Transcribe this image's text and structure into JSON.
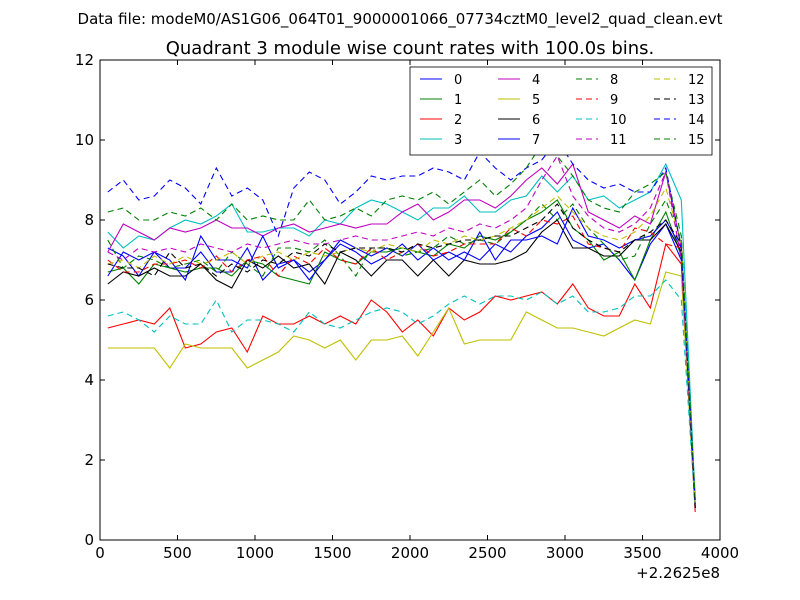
{
  "chart_data": {
    "type": "line",
    "suptitle": "Data file: modeM0/AS1G06_064T01_9000001066_07734cztM0_level2_quad_clean.evt",
    "title": "Quadrant 3 module wise count rates with 100.0s bins.",
    "xlabel": "",
    "ylabel": "",
    "x_offset_label": "+2.2625e8",
    "xlim": [
      0,
      4000
    ],
    "ylim": [
      0,
      12
    ],
    "xticks": [
      0,
      500,
      1000,
      1500,
      2000,
      2500,
      3000,
      3500,
      4000
    ],
    "yticks": [
      0,
      2,
      4,
      6,
      8,
      10,
      12
    ],
    "x": [
      50,
      150,
      250,
      350,
      450,
      550,
      650,
      750,
      850,
      950,
      1050,
      1150,
      1250,
      1350,
      1450,
      1550,
      1650,
      1750,
      1850,
      1950,
      2050,
      2150,
      2250,
      2350,
      2450,
      2550,
      2650,
      2750,
      2850,
      2950,
      3050,
      3150,
      3250,
      3350,
      3450,
      3550,
      3650,
      3750,
      3840
    ],
    "legend": {
      "location": "upper right",
      "columns": 4
    },
    "series": [
      {
        "name": "0",
        "color": "#0000ff",
        "dash": "solid",
        "values": [
          7.3,
          7.1,
          6.6,
          7.2,
          6.8,
          6.8,
          7.2,
          6.7,
          6.7,
          7.3,
          6.5,
          6.9,
          7.0,
          6.7,
          7.0,
          7.4,
          7.2,
          6.9,
          7.1,
          7.4,
          7.0,
          7.3,
          7.0,
          7.2,
          7.0,
          7.4,
          7.2,
          7.6,
          7.8,
          8.2,
          7.5,
          7.3,
          7.4,
          7.0,
          6.5,
          7.4,
          7.9,
          7.0,
          0.8
        ]
      },
      {
        "name": "1",
        "color": "#008000",
        "dash": "solid",
        "values": [
          6.7,
          6.8,
          6.4,
          6.9,
          6.8,
          6.7,
          6.8,
          6.8,
          6.6,
          7.0,
          6.9,
          6.6,
          6.5,
          6.4,
          7.2,
          7.0,
          6.9,
          7.2,
          7.2,
          7.3,
          7.2,
          7.1,
          7.4,
          7.3,
          7.6,
          7.5,
          7.7,
          8.0,
          8.2,
          8.5,
          7.8,
          7.5,
          7.0,
          7.2,
          6.5,
          7.5,
          8.2,
          7.1,
          0.8
        ]
      },
      {
        "name": "2",
        "color": "#ff0000",
        "dash": "solid",
        "values": [
          5.3,
          5.4,
          5.5,
          5.4,
          5.8,
          4.8,
          4.9,
          5.2,
          5.3,
          4.7,
          5.6,
          5.4,
          5.4,
          5.6,
          5.4,
          5.6,
          5.4,
          6.0,
          5.7,
          5.2,
          5.5,
          5.1,
          5.8,
          5.5,
          5.7,
          6.1,
          6.0,
          6.1,
          6.2,
          5.9,
          6.4,
          5.8,
          5.6,
          5.6,
          6.4,
          5.8,
          7.4,
          6.9,
          0.7
        ]
      },
      {
        "name": "3",
        "color": "#00bfbf",
        "dash": "solid",
        "values": [
          7.7,
          7.3,
          7.6,
          7.5,
          7.8,
          8.0,
          7.9,
          8.1,
          8.4,
          7.7,
          7.7,
          7.8,
          7.8,
          7.6,
          8.0,
          7.9,
          8.3,
          8.5,
          8.4,
          8.2,
          8.0,
          8.3,
          8.3,
          8.6,
          8.2,
          8.2,
          8.5,
          8.6,
          9.1,
          8.7,
          9.1,
          8.5,
          8.6,
          8.3,
          8.5,
          8.7,
          9.4,
          8.5,
          1.0
        ]
      },
      {
        "name": "4",
        "color": "#bf00bf",
        "dash": "solid",
        "values": [
          7.2,
          7.9,
          7.7,
          7.5,
          7.8,
          7.7,
          7.8,
          8.0,
          7.8,
          7.8,
          7.6,
          7.8,
          7.9,
          7.7,
          7.8,
          7.9,
          7.8,
          7.9,
          7.9,
          8.2,
          8.4,
          8.0,
          8.2,
          8.5,
          8.5,
          8.3,
          8.6,
          9.0,
          9.3,
          8.9,
          9.4,
          8.2,
          8.0,
          7.8,
          8.1,
          7.9,
          9.2,
          7.3,
          0.9
        ]
      },
      {
        "name": "5",
        "color": "#bfbf00",
        "dash": "solid",
        "values": [
          4.8,
          4.8,
          4.8,
          4.8,
          4.3,
          4.9,
          4.8,
          4.8,
          4.8,
          4.3,
          4.5,
          4.7,
          5.1,
          5.0,
          4.8,
          5.0,
          4.5,
          5.0,
          5.0,
          5.1,
          4.6,
          5.2,
          5.8,
          4.9,
          5.0,
          5.0,
          5.0,
          5.7,
          5.5,
          5.3,
          5.3,
          5.2,
          5.1,
          5.3,
          5.5,
          5.4,
          6.7,
          6.6,
          0.8
        ]
      },
      {
        "name": "6",
        "color": "#000000",
        "dash": "solid",
        "values": [
          6.4,
          6.7,
          6.6,
          6.8,
          6.6,
          6.6,
          6.9,
          6.5,
          6.3,
          7.0,
          6.8,
          7.1,
          6.8,
          6.9,
          6.4,
          7.2,
          7.0,
          6.6,
          7.0,
          7.0,
          6.6,
          7.0,
          6.6,
          7.0,
          6.9,
          6.9,
          7.0,
          7.2,
          7.7,
          8.0,
          7.3,
          7.3,
          7.1,
          7.1,
          7.5,
          7.5,
          7.9,
          7.2,
          0.8
        ]
      },
      {
        "name": "7",
        "color": "#0000ff",
        "dash": "solid",
        "values": [
          6.6,
          7.2,
          7.0,
          7.2,
          7.0,
          6.5,
          7.6,
          7.0,
          7.0,
          6.8,
          7.6,
          6.8,
          7.0,
          6.5,
          7.0,
          7.5,
          7.3,
          7.1,
          7.3,
          7.1,
          7.4,
          7.0,
          7.2,
          7.0,
          7.7,
          7.0,
          7.5,
          7.5,
          7.6,
          7.4,
          8.3,
          7.6,
          7.5,
          7.3,
          7.5,
          7.6,
          8.0,
          7.3,
          0.9
        ]
      },
      {
        "name": "8",
        "color": "#008000",
        "dash": "dashed",
        "values": [
          7.5,
          6.8,
          7.1,
          7.0,
          6.8,
          6.9,
          7.0,
          6.7,
          7.2,
          6.9,
          6.6,
          7.3,
          7.3,
          7.2,
          7.5,
          7.1,
          6.6,
          7.3,
          7.3,
          7.1,
          7.2,
          7.3,
          7.6,
          7.4,
          7.5,
          7.4,
          7.7,
          8.0,
          8.4,
          8.0,
          8.4,
          7.8,
          7.4,
          7.0,
          7.1,
          7.9,
          8.5,
          7.5,
          0.9
        ]
      },
      {
        "name": "9",
        "color": "#ff0000",
        "dash": "dashed",
        "values": [
          7.0,
          6.7,
          6.7,
          6.9,
          6.9,
          7.0,
          6.8,
          7.1,
          6.7,
          7.0,
          7.1,
          6.6,
          7.1,
          6.9,
          7.3,
          7.0,
          6.9,
          7.3,
          7.0,
          7.2,
          7.4,
          7.1,
          7.2,
          7.4,
          7.4,
          7.4,
          7.8,
          7.6,
          8.0,
          7.9,
          8.1,
          7.4,
          7.3,
          7.2,
          7.8,
          7.7,
          7.4,
          7.3,
          0.8
        ]
      },
      {
        "name": "10",
        "color": "#00bfbf",
        "dash": "dashed",
        "values": [
          5.6,
          5.7,
          5.5,
          5.2,
          5.6,
          5.4,
          5.4,
          6.0,
          5.2,
          5.5,
          5.5,
          5.4,
          5.2,
          5.7,
          5.4,
          5.3,
          5.5,
          5.7,
          5.8,
          5.7,
          5.4,
          5.6,
          5.9,
          6.1,
          5.9,
          6.1,
          6.1,
          6.0,
          6.2,
          5.9,
          6.1,
          5.7,
          5.7,
          5.8,
          6.1,
          6.1,
          6.5,
          6.0,
          0.8
        ]
      },
      {
        "name": "11",
        "color": "#bf00bf",
        "dash": "dashed",
        "values": [
          7.2,
          7.0,
          7.3,
          7.2,
          7.3,
          7.2,
          7.4,
          7.3,
          7.2,
          7.4,
          7.3,
          7.4,
          7.5,
          7.4,
          7.4,
          7.5,
          7.6,
          7.5,
          7.5,
          7.6,
          7.7,
          7.6,
          7.8,
          7.7,
          7.9,
          7.8,
          8.0,
          8.3,
          9.0,
          9.6,
          8.6,
          8.1,
          7.8,
          7.7,
          7.9,
          8.3,
          9.2,
          7.0,
          0.9
        ]
      },
      {
        "name": "12",
        "color": "#bfbf00",
        "dash": "dashed",
        "values": [
          6.9,
          7.0,
          6.8,
          7.1,
          6.9,
          7.1,
          6.9,
          7.0,
          7.2,
          6.9,
          7.1,
          7.2,
          7.0,
          7.2,
          7.1,
          7.2,
          7.3,
          7.2,
          7.4,
          7.3,
          7.2,
          7.5,
          7.4,
          7.6,
          7.5,
          7.6,
          7.8,
          8.0,
          8.3,
          8.6,
          8.2,
          7.8,
          7.6,
          7.5,
          7.7,
          8.1,
          8.8,
          7.4,
          0.9
        ]
      },
      {
        "name": "13",
        "color": "#000000",
        "dash": "dashed",
        "values": [
          6.9,
          6.8,
          6.8,
          6.6,
          7.2,
          6.8,
          6.9,
          6.6,
          6.9,
          6.7,
          7.0,
          6.9,
          7.2,
          7.1,
          7.4,
          7.2,
          7.3,
          7.3,
          7.3,
          7.2,
          7.4,
          7.3,
          7.4,
          7.5,
          7.5,
          7.6,
          7.6,
          7.8,
          8.0,
          8.4,
          7.8,
          7.5,
          7.3,
          7.2,
          7.5,
          7.7,
          8.0,
          7.4,
          0.8
        ]
      },
      {
        "name": "14",
        "color": "#0000ff",
        "dash": "dashed",
        "values": [
          8.7,
          9.0,
          8.5,
          8.6,
          9.0,
          8.8,
          8.4,
          9.3,
          8.6,
          8.8,
          8.5,
          7.6,
          8.8,
          9.2,
          9.0,
          8.4,
          8.7,
          9.1,
          9.0,
          9.1,
          9.1,
          9.3,
          9.2,
          9.0,
          9.7,
          9.3,
          9.0,
          9.3,
          9.5,
          10.0,
          9.4,
          9.0,
          8.8,
          8.9,
          8.7,
          8.7,
          9.3,
          7.3,
          1.0
        ]
      },
      {
        "name": "15",
        "color": "#008000",
        "dash": "dashed",
        "values": [
          8.2,
          8.3,
          8.0,
          8.0,
          8.2,
          8.1,
          8.3,
          8.0,
          8.4,
          8.0,
          8.1,
          8.0,
          8.0,
          8.5,
          8.0,
          8.1,
          8.3,
          8.1,
          8.5,
          8.6,
          8.5,
          8.7,
          8.4,
          8.7,
          9.0,
          8.6,
          8.9,
          9.3,
          9.9,
          9.6,
          9.1,
          8.5,
          8.3,
          8.2,
          8.7,
          8.9,
          9.2,
          7.6,
          1.0
        ]
      }
    ]
  }
}
